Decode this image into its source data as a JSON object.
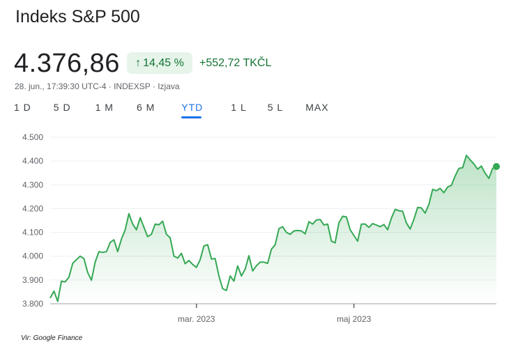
{
  "header": {
    "title": "Indeks S&P 500"
  },
  "quote": {
    "price": "4.376,86",
    "change_percent": "14,45 %",
    "change_icon": "arrow-up-icon",
    "change_abs": "+552,72 TKČL",
    "meta": "28. jun., 17:39:30 UTC-4 · INDEXSP · Izjava"
  },
  "tabs": [
    {
      "label": "1 D"
    },
    {
      "label": "5 D"
    },
    {
      "label": "1 M"
    },
    {
      "label": "6 M"
    },
    {
      "label": "YTD",
      "active": true
    },
    {
      "label": "1 L"
    },
    {
      "label": "5 L"
    },
    {
      "label": "MAX"
    }
  ],
  "colors": {
    "line": "#34a853",
    "up": "#137333",
    "accent": "#1a73e8"
  },
  "chart_data": {
    "type": "area",
    "title": "",
    "xlabel": "",
    "ylabel": "",
    "ylim": [
      3800,
      4500
    ],
    "yticks": [
      {
        "value": 4500,
        "label": "4.500"
      },
      {
        "value": 4400,
        "label": "4.400"
      },
      {
        "value": 4300,
        "label": "4.300"
      },
      {
        "value": 4200,
        "label": "4.200"
      },
      {
        "value": 4100,
        "label": "4.100"
      },
      {
        "value": 4000,
        "label": "4.000"
      },
      {
        "value": 3900,
        "label": "3.900"
      },
      {
        "value": 3800,
        "label": "3.800"
      }
    ],
    "xticks": [
      {
        "index": 39,
        "label": "mar. 2023"
      },
      {
        "index": 81,
        "label": "maj 2023"
      }
    ],
    "grid": true,
    "series": [
      {
        "name": "S&P 500",
        "values": [
          3824,
          3853,
          3810,
          3895,
          3892,
          3912,
          3970,
          3985,
          4000,
          3990,
          3931,
          3899,
          3975,
          4019,
          4016,
          4019,
          4058,
          4069,
          4019,
          4072,
          4111,
          4179,
          4135,
          4111,
          4162,
          4121,
          4082,
          4092,
          4135,
          4132,
          4147,
          4092,
          4077,
          4000,
          3992,
          4012,
          3968,
          3982,
          3965,
          3953,
          3985,
          4043,
          4048,
          3988,
          3990,
          3917,
          3863,
          3856,
          3917,
          3895,
          3959,
          3917,
          3946,
          4002,
          3938,
          3960,
          3975,
          3975,
          3970,
          4029,
          4048,
          4116,
          4124,
          4100,
          4092,
          4106,
          4108,
          4106,
          4094,
          4145,
          4135,
          4152,
          4154,
          4131,
          4135,
          4063,
          4056,
          4140,
          4168,
          4165,
          4111,
          4087,
          4063,
          4135,
          4135,
          4121,
          4137,
          4131,
          4124,
          4133,
          4111,
          4160,
          4197,
          4191,
          4189,
          4140,
          4114,
          4155,
          4205,
          4203,
          4181,
          4218,
          4281,
          4275,
          4285,
          4267,
          4291,
          4298,
          4337,
          4369,
          4372,
          4424,
          4405,
          4388,
          4366,
          4379,
          4349,
          4327,
          4369,
          4376.86
        ]
      }
    ]
  },
  "footer": {
    "source": "Vir: Google Finance"
  }
}
